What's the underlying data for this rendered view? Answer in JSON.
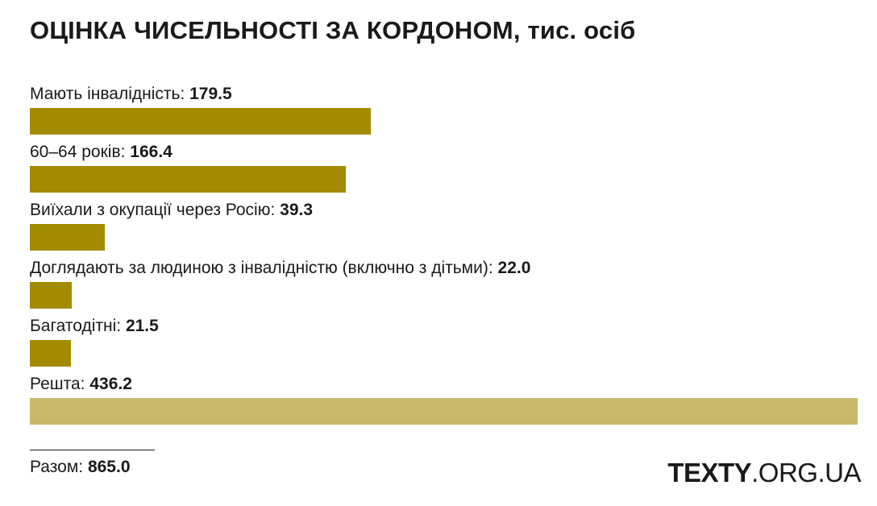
{
  "chart_data": {
    "type": "bar",
    "orientation": "horizontal",
    "title": "ОЦІНКА ЧИСЕЛЬНОСТІ ЗА КОРДОНОМ",
    "title_unit": ", тис. осіб",
    "categories": [
      "Мають інвалідність",
      "60–64 років",
      "Виїхали з окупації через Росію",
      "Доглядають за людиною з інвалідністю (включно з дітьми)",
      "Багатодітні",
      "Решта"
    ],
    "values": [
      179.5,
      166.4,
      39.3,
      22.0,
      21.5,
      436.2
    ],
    "value_labels": [
      "179.5",
      "166.4",
      "39.3",
      "22.0",
      "21.5",
      "436.2"
    ],
    "colors": [
      "#a38b00",
      "#a38b00",
      "#a38b00",
      "#a38b00",
      "#a38b00",
      "#c8b86a"
    ],
    "xlim": [
      0,
      436.2
    ],
    "grid": false,
    "total_label": "Разом:",
    "total_value": "865.0"
  },
  "branding": {
    "bold": "TEXTY",
    "light": ".ORG.UA"
  }
}
